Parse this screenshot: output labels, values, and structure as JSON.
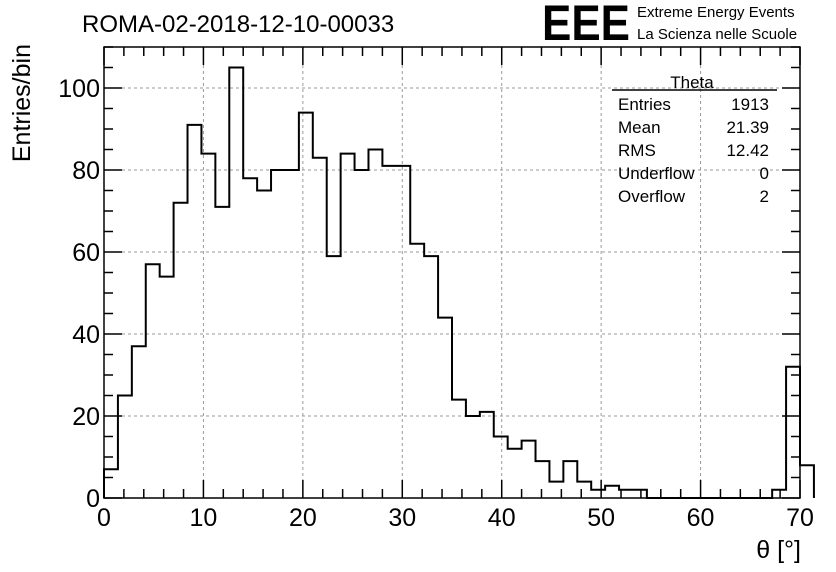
{
  "chart_data": {
    "type": "histogram",
    "title": "ROMA-02-2018-12-10-00033",
    "xlabel": "θ [°]",
    "ylabel": "Entries/bin",
    "xlim": [
      0,
      70
    ],
    "ylim": [
      0,
      110
    ],
    "bin_width": 1.4,
    "x_ticks": [
      0,
      10,
      20,
      30,
      40,
      50,
      60,
      70
    ],
    "y_ticks": [
      0,
      20,
      40,
      60,
      80,
      100
    ],
    "grid": true,
    "values": [
      7,
      25,
      37,
      57,
      54,
      72,
      91,
      84,
      71,
      105,
      78,
      75,
      80,
      80,
      94,
      83,
      59,
      84,
      80,
      85,
      81,
      81,
      62,
      59,
      44,
      24,
      20,
      21,
      15,
      12,
      14,
      9,
      4,
      9,
      4,
      2,
      3,
      2,
      2,
      0,
      0,
      0,
      0,
      0,
      0,
      0,
      0,
      0,
      2,
      32,
      8
    ],
    "stats_box": {
      "title": "Theta",
      "rows": [
        {
          "label": "Entries",
          "value": "1913"
        },
        {
          "label": "Mean",
          "value": "21.39"
        },
        {
          "label": "RMS",
          "value": "12.42"
        },
        {
          "label": "Underflow",
          "value": "0"
        },
        {
          "label": "Overflow",
          "value": "2"
        }
      ]
    }
  },
  "logo": {
    "text": "EEE",
    "line1": "Extreme Energy Events",
    "line2": "La Scienza nelle Scuole",
    "color": "#1a1aff"
  }
}
